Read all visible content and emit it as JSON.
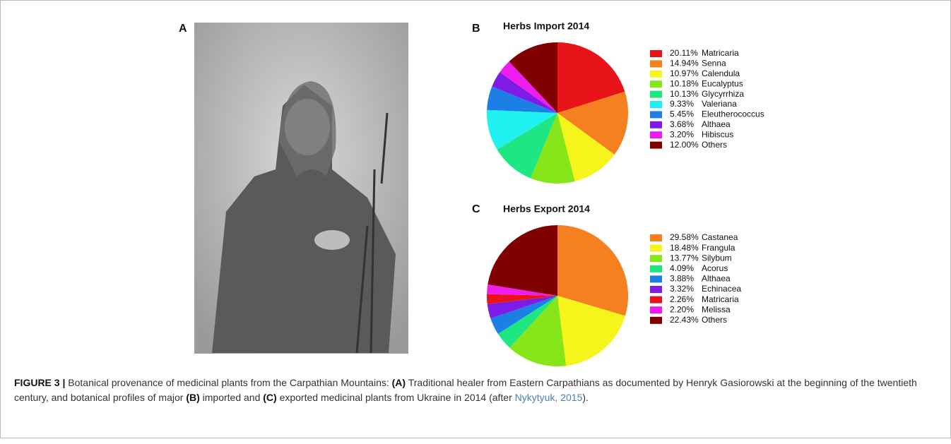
{
  "panels": {
    "a": "A",
    "b": "B",
    "c": "C"
  },
  "chart_data": [
    {
      "type": "pie",
      "title": "Herbs Import 2014",
      "categories": [
        "Matricaria",
        "Senna",
        "Calendula",
        "Eucalyptus",
        "Glycyrrhiza",
        "Valeriana",
        "Eleutherococcus",
        "Althaea",
        "Hibiscus",
        "Others"
      ],
      "values": [
        20.11,
        14.94,
        10.97,
        10.18,
        10.13,
        9.33,
        5.45,
        3.68,
        3.2,
        12.0
      ],
      "value_labels": [
        "20.11%",
        "14.94%",
        "10.97%",
        "10.18%",
        "10.13%",
        "9.33%",
        "5.45%",
        "3.68%",
        "3.20%",
        "12.00%"
      ],
      "colors": [
        "#e8141a",
        "#f5801f",
        "#f5f51c",
        "#86e61a",
        "#1ee682",
        "#1ff0f0",
        "#1b7fe6",
        "#7f1be6",
        "#ee1cee",
        "#800000"
      ]
    },
    {
      "type": "pie",
      "title": "Herbs Export 2014",
      "categories": [
        "Castanea",
        "Frangula",
        "Silybum",
        "Acorus",
        "Althaea",
        "Echinacea",
        "Matricaria",
        "Melissa",
        "Others"
      ],
      "values": [
        29.58,
        18.48,
        13.77,
        4.09,
        3.88,
        3.32,
        2.26,
        2.2,
        22.43
      ],
      "value_labels": [
        "29.58%",
        "18.48%",
        "13.77%",
        "4.09%",
        "3.88%",
        "3.32%",
        "2.26%",
        "2.20%",
        "22.43%"
      ],
      "colors": [
        "#f5801f",
        "#f5f51c",
        "#86e61a",
        "#1ee682",
        "#1b7fe6",
        "#7f1be6",
        "#e8141a",
        "#ee1cee",
        "#800000"
      ]
    }
  ],
  "caption": {
    "parts": [
      {
        "text": "FIGURE 3 |",
        "style": "bold"
      },
      {
        "text": " Botanical provenance of medicinal plants from the Carpathian Mountains: ",
        "style": "normal"
      },
      {
        "text": "(A)",
        "style": "bold"
      },
      {
        "text": " Traditional healer from Eastern Carpathians as documented by Henryk Gasiorowski at the beginning of the twentieth century, and botanical profiles of major ",
        "style": "normal"
      },
      {
        "text": "(B)",
        "style": "bold"
      },
      {
        "text": " imported and ",
        "style": "normal"
      },
      {
        "text": "(C)",
        "style": "bold"
      },
      {
        "text": " exported medicinal plants from Ukraine in 2014 (after ",
        "style": "normal"
      },
      {
        "text": "Nykytyuk, 2015",
        "style": "link"
      },
      {
        "text": ").",
        "style": "normal"
      }
    ]
  }
}
